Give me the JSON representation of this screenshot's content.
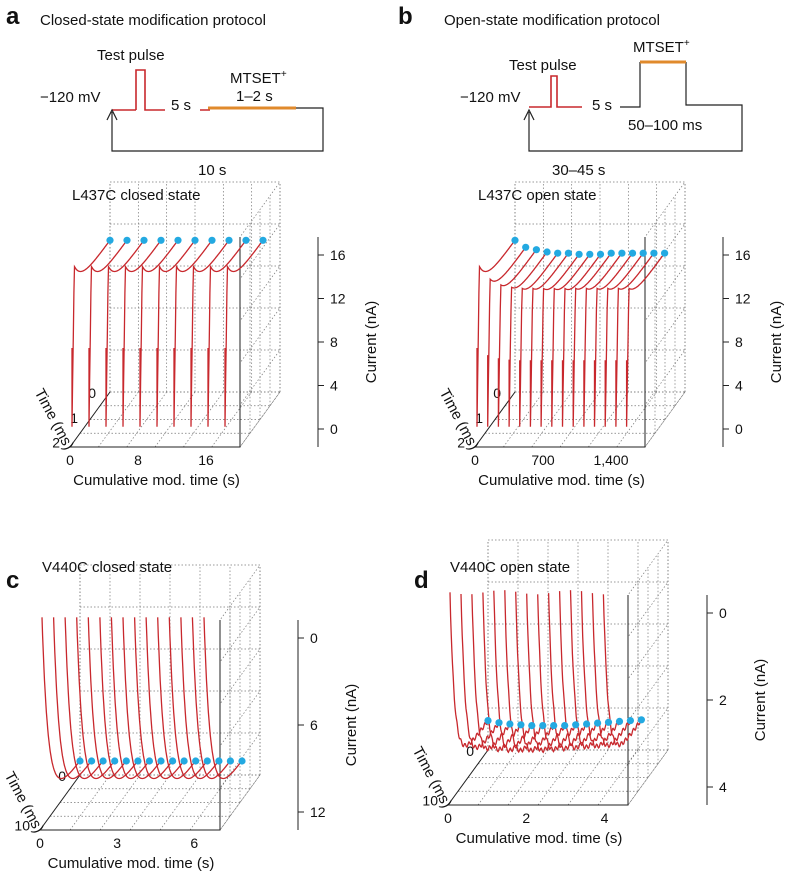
{
  "panels": {
    "a": {
      "label": "a",
      "protocol_title": "Closed-state modification protocol",
      "test_pulse_label": "Test pulse",
      "holding_label": "−120 mV",
      "interval_label": "5 s",
      "reagent_label": "MTSET",
      "reagent_sup": "+",
      "reagent_duration": "1–2 s",
      "cycle_label": "10 s"
    },
    "b": {
      "label": "b",
      "protocol_title": "Open-state modification protocol",
      "test_pulse_label": "Test pulse",
      "holding_label": "−120 mV",
      "interval_label": "5 s",
      "reagent_label": "MTSET",
      "reagent_sup": "+",
      "reagent_duration": "50–100 ms",
      "cycle_label": "30–45 s"
    },
    "c": {
      "label": "c"
    },
    "d": {
      "label": "d"
    }
  },
  "colors": {
    "trace": "#c8282d",
    "marker": "#23a9e1",
    "reagent_bar": "#e08a2c",
    "axis": "#222222",
    "grid": "#777777"
  },
  "chart_data": [
    {
      "id": "L437C-closed",
      "type": "line3d",
      "title": "L437C closed state",
      "xlabel": "Cumulative mod. time (s)",
      "ylabel": "Time (ms)",
      "zlabel": "Current (nA)",
      "x_ticks": [
        "0",
        "8",
        "16"
      ],
      "y_ticks": [
        "0",
        "1",
        "2"
      ],
      "z_ticks": [
        "16",
        "12",
        "8",
        "4",
        "0"
      ],
      "xlim": [
        0,
        20
      ],
      "ylim": [
        0,
        2
      ],
      "zlim": [
        0,
        18
      ],
      "n_traces": 10,
      "series": {
        "x_mod_time": [
          0,
          2,
          4,
          6,
          8,
          10,
          12,
          14,
          16,
          18
        ],
        "peak_current_nA": [
          15.0,
          15.0,
          15.0,
          15.0,
          15.0,
          15.0,
          15.0,
          15.0,
          15.0,
          15.0
        ],
        "end_current_nA": [
          13.0,
          13.0,
          13.0,
          13.0,
          13.0,
          13.0,
          13.0,
          13.0,
          13.0,
          13.0
        ]
      }
    },
    {
      "id": "L437C-open",
      "type": "line3d",
      "title": "L437C open state",
      "xlabel": "Cumulative mod. time (s)",
      "ylabel": "Time (ms)",
      "zlabel": "Current (nA)",
      "x_ticks": [
        "0",
        "700",
        "1,400"
      ],
      "y_ticks": [
        "0",
        "1",
        "2"
      ],
      "z_ticks": [
        "16",
        "12",
        "8",
        "4",
        "0"
      ],
      "xlim": [
        0,
        1750
      ],
      "ylim": [
        0,
        2
      ],
      "zlim": [
        0,
        18
      ],
      "n_traces": 15,
      "series": {
        "x_mod_time": [
          0,
          110,
          220,
          330,
          440,
          550,
          660,
          770,
          880,
          990,
          1100,
          1210,
          1320,
          1430,
          1540
        ],
        "peak_current_nA": [
          15.0,
          13.9,
          13.4,
          13.2,
          13.1,
          13.1,
          13.1,
          13.1,
          13.1,
          13.1,
          13.1,
          13.1,
          13.1,
          13.1,
          13.1
        ],
        "end_current_nA": [
          13.0,
          12.4,
          12.2,
          12.0,
          11.9,
          11.9,
          11.8,
          11.8,
          11.8,
          11.9,
          11.9,
          11.9,
          11.9,
          11.9,
          11.9
        ]
      }
    },
    {
      "id": "V440C-closed",
      "type": "line3d",
      "title": "V440C closed state",
      "xlabel": "Cumulative mod. time (s)",
      "ylabel": "Time (ms)",
      "zlabel": "Current (nA)",
      "x_ticks": [
        "0",
        "3",
        "6"
      ],
      "y_ticks": [
        "0",
        "10"
      ],
      "z_ticks": [
        "0",
        "6",
        "12"
      ],
      "xlim": [
        0,
        7
      ],
      "ylim": [
        0,
        15
      ],
      "zlim": [
        0,
        13.5
      ],
      "n_traces": 15,
      "series": {
        "x_mod_time": [
          0,
          0.45,
          0.9,
          1.35,
          1.8,
          2.25,
          2.7,
          3.15,
          3.6,
          4.05,
          4.5,
          4.95,
          5.4,
          5.85,
          6.3
        ],
        "peak_current_nA": [
          0.0,
          0.0,
          0.0,
          0.0,
          0.0,
          0.0,
          0.0,
          0.0,
          0.0,
          0.0,
          0.0,
          0.0,
          0.0,
          0.0,
          0.0
        ],
        "end_current_nA": [
          12.6,
          12.6,
          12.6,
          12.6,
          12.6,
          12.6,
          12.6,
          12.6,
          12.6,
          12.6,
          12.6,
          12.6,
          12.6,
          12.6,
          12.6
        ]
      }
    },
    {
      "id": "V440C-open",
      "type": "line3d",
      "title": "V440C open state",
      "xlabel": "Cumulative mod. time (s)",
      "ylabel": "Time (ms)",
      "zlabel": "Current (nA)",
      "x_ticks": [
        "0",
        "2",
        "4"
      ],
      "y_ticks": [
        "0",
        "10"
      ],
      "z_ticks": [
        "0",
        "2",
        "4"
      ],
      "xlim": [
        0,
        4.6
      ],
      "ylim": [
        0,
        15
      ],
      "zlim": [
        0,
        5
      ],
      "n_traces": 15,
      "series": {
        "x_mod_time": [
          0,
          0.28,
          0.56,
          0.84,
          1.12,
          1.4,
          1.68,
          1.96,
          2.24,
          2.52,
          2.8,
          3.08,
          3.36,
          3.64,
          3.92
        ],
        "peak_current_nA": [
          0.0,
          0.0,
          0.0,
          0.0,
          0.0,
          0.0,
          0.0,
          0.0,
          0.0,
          0.0,
          0.0,
          0.0,
          0.0,
          0.0,
          0.0
        ],
        "end_current_nA": [
          4.3,
          4.35,
          4.38,
          4.4,
          4.42,
          4.42,
          4.42,
          4.42,
          4.4,
          4.38,
          4.36,
          4.34,
          4.32,
          4.3,
          4.28
        ]
      }
    }
  ]
}
